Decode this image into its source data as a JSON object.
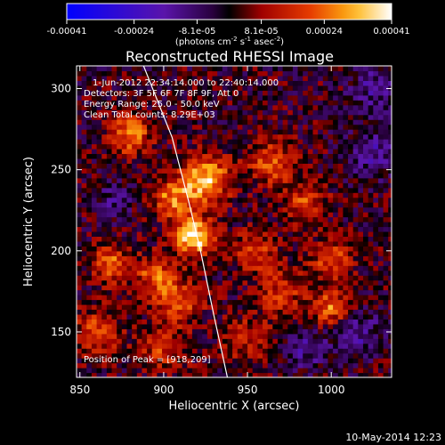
{
  "chart_data": {
    "type": "heatmap",
    "title": "Reconstructed RHESSI Image",
    "xlabel": "Heliocentric X (arcsec)",
    "ylabel": "Heliocentric Y (arcsec)",
    "xlim": [
      848,
      1036
    ],
    "ylim": [
      122,
      314
    ],
    "xticks": [
      850,
      900,
      950,
      1000
    ],
    "yticks": [
      150,
      200,
      250,
      300
    ],
    "colorbar": {
      "ticks": [
        "-0.00041",
        "-0.00024",
        "-8.1e-05",
        "8.1e-05",
        "0.00024",
        "0.00041"
      ],
      "range": [
        -0.00041,
        0.00041
      ],
      "units_prefix": "(photons cm",
      "units_sup1": "-2",
      "units_mid": " s",
      "units_sup2": "-1",
      "units_mid2": " asec",
      "units_sup3": "-2",
      "units_suffix": ")"
    },
    "annotations": [
      "1-Jun-2012 22:34:14.000 to 22:40:14.000",
      "Detectors: 3F 5F 6F 7F 8F 9F, Att 0",
      "Energy Range: 25.0 - 50.0 keV",
      "Clean     Total counts: 8.29E+03"
    ],
    "peak_label": "Position of Peak = [918,209]",
    "peak": [
      918,
      209
    ],
    "limb_curve": [
      [
        888,
        314
      ],
      [
        905,
        270
      ],
      [
        915,
        230
      ],
      [
        922,
        200
      ],
      [
        930,
        160
      ],
      [
        938,
        122
      ]
    ],
    "sources": [
      {
        "x": 918,
        "y": 209,
        "amp": 1.0,
        "w": 8
      },
      {
        "x": 925,
        "y": 244,
        "amp": 0.85,
        "w": 10
      },
      {
        "x": 905,
        "y": 232,
        "amp": 0.6,
        "w": 9
      },
      {
        "x": 880,
        "y": 272,
        "amp": 0.6,
        "w": 9
      },
      {
        "x": 868,
        "y": 192,
        "amp": 0.55,
        "w": 8
      },
      {
        "x": 895,
        "y": 185,
        "amp": 0.5,
        "w": 9
      },
      {
        "x": 910,
        "y": 170,
        "amp": 0.45,
        "w": 10
      },
      {
        "x": 965,
        "y": 255,
        "amp": 0.5,
        "w": 10
      },
      {
        "x": 985,
        "y": 230,
        "amp": 0.45,
        "w": 9
      },
      {
        "x": 1000,
        "y": 195,
        "amp": 0.5,
        "w": 9
      },
      {
        "x": 1000,
        "y": 165,
        "amp": 0.6,
        "w": 8
      },
      {
        "x": 955,
        "y": 200,
        "amp": 0.45,
        "w": 9
      },
      {
        "x": 970,
        "y": 175,
        "amp": 0.4,
        "w": 10
      },
      {
        "x": 860,
        "y": 150,
        "amp": 0.45,
        "w": 10
      },
      {
        "x": 900,
        "y": 140,
        "amp": 0.4,
        "w": 10
      },
      {
        "x": 950,
        "y": 145,
        "amp": 0.35,
        "w": 10
      },
      {
        "x": 1025,
        "y": 260,
        "amp": -0.35,
        "w": 10
      },
      {
        "x": 1015,
        "y": 150,
        "amp": -0.35,
        "w": 10
      },
      {
        "x": 985,
        "y": 140,
        "amp": -0.3,
        "w": 9
      },
      {
        "x": 1025,
        "y": 300,
        "amp": -0.3,
        "w": 10
      },
      {
        "x": 870,
        "y": 230,
        "amp": -0.25,
        "w": 8
      }
    ]
  },
  "footer": "10-May-2014 12:23"
}
